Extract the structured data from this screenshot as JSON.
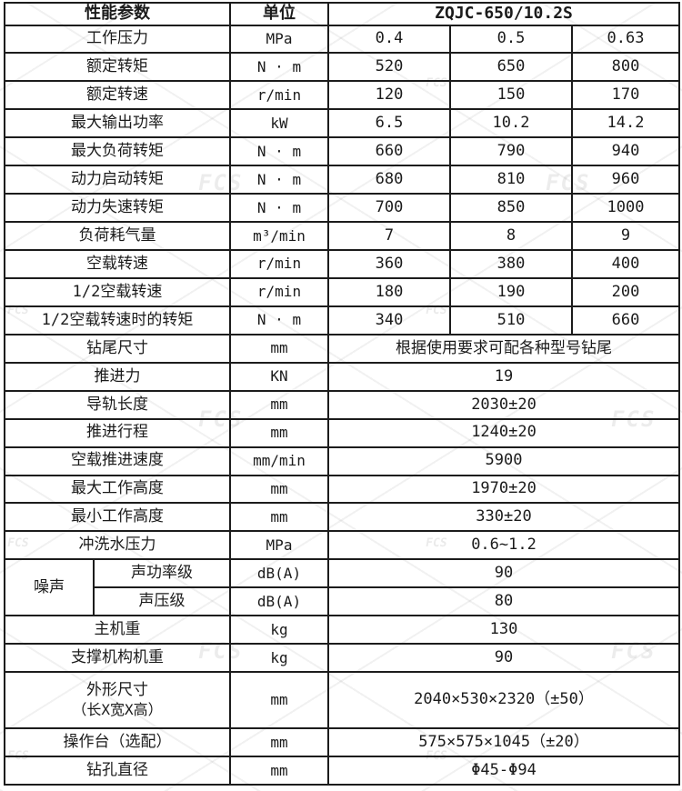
{
  "table": {
    "header": {
      "param": "性能参数",
      "unit": "单位",
      "model": "ZQJC-650/10.2S"
    },
    "rows": [
      {
        "t": "three",
        "label": "工作压力",
        "unit": "MPa",
        "values": [
          "0.4",
          "0.5",
          "0.63"
        ]
      },
      {
        "t": "three",
        "label": "额定转矩",
        "unit": "N · m",
        "values": [
          "520",
          "650",
          "800"
        ]
      },
      {
        "t": "three",
        "label": "额定转速",
        "unit": "r/min",
        "values": [
          "120",
          "150",
          "170"
        ]
      },
      {
        "t": "three",
        "label": "最大输出功率",
        "unit": "kW",
        "values": [
          "6.5",
          "10.2",
          "14.2"
        ]
      },
      {
        "t": "three",
        "label": "最大负荷转矩",
        "unit": "N · m",
        "values": [
          "660",
          "790",
          "940"
        ]
      },
      {
        "t": "three",
        "label": "动力启动转矩",
        "unit": "N · m",
        "values": [
          "680",
          "810",
          "960"
        ]
      },
      {
        "t": "three",
        "label": "动力失速转矩",
        "unit": "N · m",
        "values": [
          "700",
          "850",
          "1000"
        ]
      },
      {
        "t": "three",
        "label": "负荷耗气量",
        "unit": "m³/min",
        "values": [
          "7",
          "8",
          "9"
        ]
      },
      {
        "t": "three",
        "label": "空载转速",
        "unit": "r/min",
        "values": [
          "360",
          "380",
          "400"
        ]
      },
      {
        "t": "three",
        "label": "1/2空载转速",
        "unit": "r/min",
        "values": [
          "180",
          "190",
          "200"
        ]
      },
      {
        "t": "three",
        "label": "1/2空载转速时的转矩",
        "unit": "N · m",
        "values": [
          "340",
          "510",
          "660"
        ]
      },
      {
        "t": "span",
        "label": "钻尾尺寸",
        "unit": "mm",
        "value": "根据使用要求可配各种型号钻尾"
      },
      {
        "t": "span",
        "label": "推进力",
        "unit": "KN",
        "value": "19"
      },
      {
        "t": "span",
        "label": "导轨长度",
        "unit": "mm",
        "value": "2030±20"
      },
      {
        "t": "span",
        "label": "推进行程",
        "unit": "mm",
        "value": "1240±20"
      },
      {
        "t": "span",
        "label": "空载推进速度",
        "unit": "mm/min",
        "value": "5900"
      },
      {
        "t": "span",
        "label": "最大工作高度",
        "unit": "mm",
        "value": "1970±20"
      },
      {
        "t": "span",
        "label": "最小工作高度",
        "unit": "mm",
        "value": "330±20"
      },
      {
        "t": "span",
        "label": "冲洗水压力",
        "unit": "MPa",
        "value": "0.6~1.2"
      },
      {
        "t": "group-first",
        "group": "噪声",
        "label": "声功率级",
        "unit": "dB(A)",
        "value": "90"
      },
      {
        "t": "group-next",
        "label": "声压级",
        "unit": "dB(A)",
        "value": "80"
      },
      {
        "t": "span",
        "label": "主机重",
        "unit": "kg",
        "value": "130"
      },
      {
        "t": "span",
        "label": "支撑机构机重",
        "unit": "kg",
        "value": "90"
      },
      {
        "t": "span",
        "label": "外形尺寸",
        "label2": "（长X宽X高）",
        "unit": "mm",
        "value": "2040×530×2320（±50）",
        "tall": true
      },
      {
        "t": "span",
        "label": "操作台（选配）",
        "unit": "mm",
        "value": "575×575×1045（±20）"
      },
      {
        "t": "span",
        "label": "钻孔直径",
        "unit": "mm",
        "value": "Φ45-Φ94"
      }
    ]
  },
  "watermark": {
    "logo_text": "FCS"
  },
  "colors": {
    "border": "#1c1c1c",
    "text": "#1b1b1b",
    "background": "#ffffff"
  }
}
